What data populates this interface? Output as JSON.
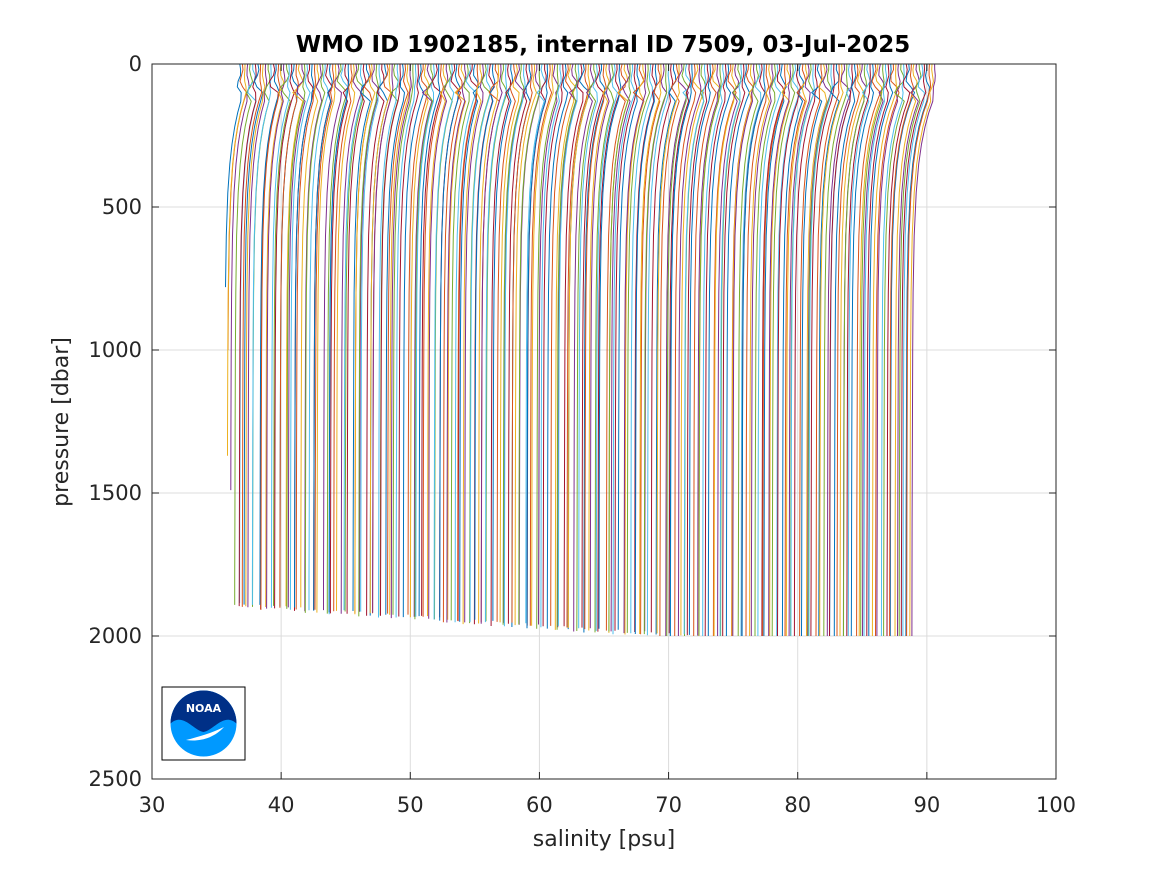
{
  "chart_data": {
    "type": "line",
    "title": "WMO ID 1902185, internal ID 7509, 03-Jul-2025",
    "xlabel": "salinity [psu]",
    "ylabel": "pressure [dbar]",
    "xlim": [
      30,
      100
    ],
    "ylim": [
      0,
      2500
    ],
    "y_reversed": true,
    "x_ticks": [
      "30",
      "40",
      "50",
      "60",
      "70",
      "80",
      "90",
      "100"
    ],
    "y_ticks": [
      "0",
      "500",
      "1000",
      "1500",
      "2000",
      "2500"
    ],
    "grid": true,
    "profile_offset_psu": 0.2,
    "profiles_count": 270,
    "first_profile": {
      "x_at_0": 36.8,
      "x_at_250": 35.4,
      "x_at_max": 34.8,
      "max_pressure": 780
    },
    "last_profile": {
      "x_at_0": 90.5,
      "x_at_100": 91.0,
      "x_at_250": 89.5,
      "x_at_max": 88.7,
      "max_pressure": 2000
    },
    "series_colors": [
      "#0072bd",
      "#d95319",
      "#edb120",
      "#7e2f8e",
      "#77ac30",
      "#4dbeee",
      "#a2142f"
    ],
    "logo": {
      "name": "noaa-logo",
      "text": "NOAA"
    }
  }
}
